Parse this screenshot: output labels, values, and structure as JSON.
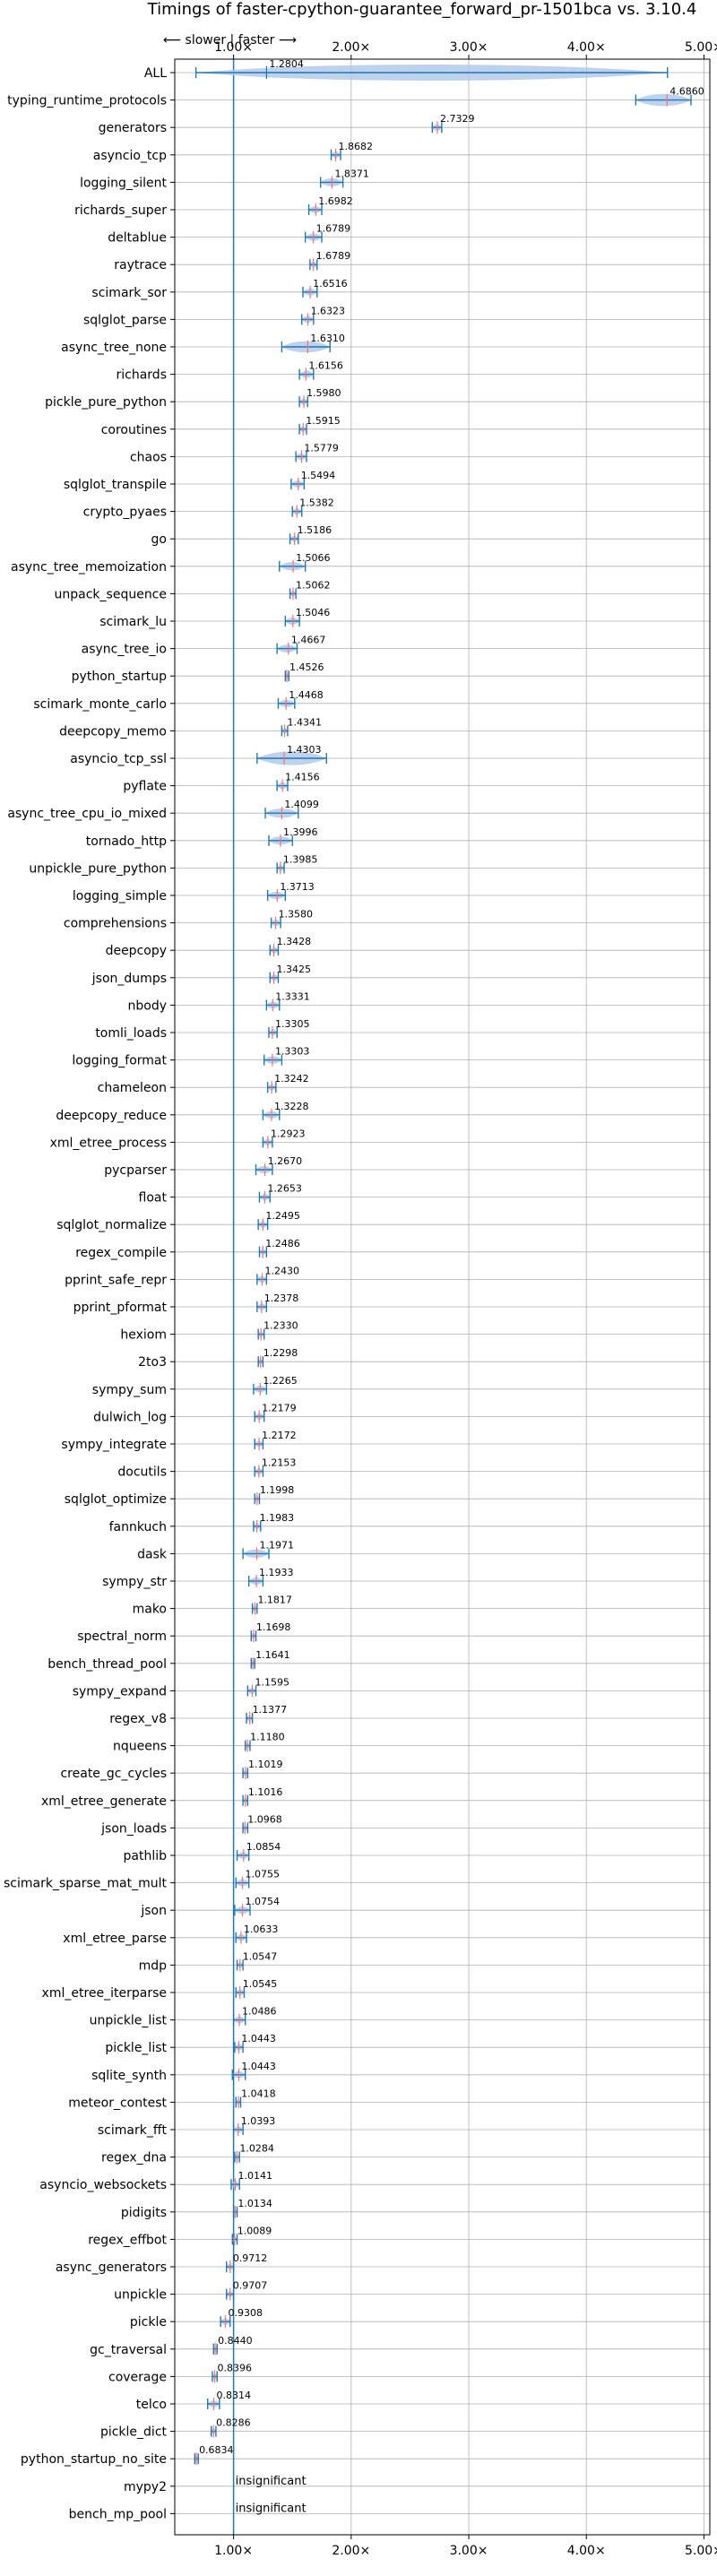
{
  "chart_data": {
    "type": "violin",
    "title": "Timings of faster-cpython-guarantee_forward_pr-1501bca vs. 3.10.4",
    "direction_label": "⟵ slower | faster ⟶",
    "xlim": [
      0.5,
      5.05
    ],
    "xticks": [
      1,
      2,
      3,
      4,
      5
    ],
    "xtick_labels": [
      "1.00×",
      "2.00×",
      "3.00×",
      "4.00×",
      "5.00×"
    ],
    "grid": true,
    "colors": {
      "primary": "#1f77b4",
      "violin_fill": "#aec7e8",
      "median": "#ff6f6f"
    },
    "items": [
      {
        "name": "ALL",
        "value": 1.2804,
        "label": "1.2804",
        "lo": 0.68,
        "hi": 4.69
      },
      {
        "name": "typing_runtime_protocols",
        "value": 4.686,
        "label": "4.6860",
        "lo": 4.42,
        "hi": 4.89
      },
      {
        "name": "generators",
        "value": 2.7329,
        "label": "2.7329",
        "lo": 2.69,
        "hi": 2.77
      },
      {
        "name": "asyncio_tcp",
        "value": 1.8682,
        "label": "1.8682",
        "lo": 1.83,
        "hi": 1.91
      },
      {
        "name": "logging_silent",
        "value": 1.8371,
        "label": "1.8371",
        "lo": 1.74,
        "hi": 1.93
      },
      {
        "name": "richards_super",
        "value": 1.6982,
        "label": "1.6982",
        "lo": 1.64,
        "hi": 1.75
      },
      {
        "name": "deltablue",
        "value": 1.6789,
        "label": "1.6789",
        "lo": 1.61,
        "hi": 1.75
      },
      {
        "name": "raytrace",
        "value": 1.6789,
        "label": "1.6789",
        "lo": 1.65,
        "hi": 1.71
      },
      {
        "name": "scimark_sor",
        "value": 1.6516,
        "label": "1.6516",
        "lo": 1.59,
        "hi": 1.71
      },
      {
        "name": "sqlglot_parse",
        "value": 1.6323,
        "label": "1.6323",
        "lo": 1.58,
        "hi": 1.68
      },
      {
        "name": "async_tree_none",
        "value": 1.631,
        "label": "1.6310",
        "lo": 1.41,
        "hi": 1.82
      },
      {
        "name": "richards",
        "value": 1.6156,
        "label": "1.6156",
        "lo": 1.56,
        "hi": 1.68
      },
      {
        "name": "pickle_pure_python",
        "value": 1.598,
        "label": "1.5980",
        "lo": 1.56,
        "hi": 1.63
      },
      {
        "name": "coroutines",
        "value": 1.5915,
        "label": "1.5915",
        "lo": 1.56,
        "hi": 1.62
      },
      {
        "name": "chaos",
        "value": 1.5779,
        "label": "1.5779",
        "lo": 1.53,
        "hi": 1.62
      },
      {
        "name": "sqlglot_transpile",
        "value": 1.5494,
        "label": "1.5494",
        "lo": 1.49,
        "hi": 1.6
      },
      {
        "name": "crypto_pyaes",
        "value": 1.5382,
        "label": "1.5382",
        "lo": 1.5,
        "hi": 1.58
      },
      {
        "name": "go",
        "value": 1.5186,
        "label": "1.5186",
        "lo": 1.48,
        "hi": 1.55
      },
      {
        "name": "async_tree_memoization",
        "value": 1.5066,
        "label": "1.5066",
        "lo": 1.39,
        "hi": 1.61
      },
      {
        "name": "unpack_sequence",
        "value": 1.5062,
        "label": "1.5062",
        "lo": 1.48,
        "hi": 1.53
      },
      {
        "name": "scimark_lu",
        "value": 1.5046,
        "label": "1.5046",
        "lo": 1.44,
        "hi": 1.56
      },
      {
        "name": "async_tree_io",
        "value": 1.4667,
        "label": "1.4667",
        "lo": 1.37,
        "hi": 1.54
      },
      {
        "name": "python_startup",
        "value": 1.4526,
        "label": "1.4526",
        "lo": 1.44,
        "hi": 1.47
      },
      {
        "name": "scimark_monte_carlo",
        "value": 1.4468,
        "label": "1.4468",
        "lo": 1.38,
        "hi": 1.52
      },
      {
        "name": "deepcopy_memo",
        "value": 1.4341,
        "label": "1.4341",
        "lo": 1.41,
        "hi": 1.46
      },
      {
        "name": "asyncio_tcp_ssl",
        "value": 1.4303,
        "label": "1.4303",
        "lo": 1.2,
        "hi": 1.79
      },
      {
        "name": "pyflate",
        "value": 1.4156,
        "label": "1.4156",
        "lo": 1.37,
        "hi": 1.46
      },
      {
        "name": "async_tree_cpu_io_mixed",
        "value": 1.4099,
        "label": "1.4099",
        "lo": 1.27,
        "hi": 1.55
      },
      {
        "name": "tornado_http",
        "value": 1.3996,
        "label": "1.3996",
        "lo": 1.3,
        "hi": 1.5
      },
      {
        "name": "unpickle_pure_python",
        "value": 1.3985,
        "label": "1.3985",
        "lo": 1.37,
        "hi": 1.43
      },
      {
        "name": "logging_simple",
        "value": 1.3713,
        "label": "1.3713",
        "lo": 1.29,
        "hi": 1.44
      },
      {
        "name": "comprehensions",
        "value": 1.358,
        "label": "1.3580",
        "lo": 1.32,
        "hi": 1.4
      },
      {
        "name": "deepcopy",
        "value": 1.3428,
        "label": "1.3428",
        "lo": 1.31,
        "hi": 1.38
      },
      {
        "name": "json_dumps",
        "value": 1.3425,
        "label": "1.3425",
        "lo": 1.31,
        "hi": 1.38
      },
      {
        "name": "nbody",
        "value": 1.3331,
        "label": "1.3331",
        "lo": 1.28,
        "hi": 1.39
      },
      {
        "name": "tomli_loads",
        "value": 1.3305,
        "label": "1.3305",
        "lo": 1.3,
        "hi": 1.37
      },
      {
        "name": "logging_format",
        "value": 1.3303,
        "label": "1.3303",
        "lo": 1.26,
        "hi": 1.41
      },
      {
        "name": "chameleon",
        "value": 1.3242,
        "label": "1.3242",
        "lo": 1.29,
        "hi": 1.36
      },
      {
        "name": "deepcopy_reduce",
        "value": 1.3228,
        "label": "1.3228",
        "lo": 1.25,
        "hi": 1.39
      },
      {
        "name": "xml_etree_process",
        "value": 1.2923,
        "label": "1.2923",
        "lo": 1.25,
        "hi": 1.33
      },
      {
        "name": "pycparser",
        "value": 1.267,
        "label": "1.2670",
        "lo": 1.19,
        "hi": 1.33
      },
      {
        "name": "float",
        "value": 1.2653,
        "label": "1.2653",
        "lo": 1.22,
        "hi": 1.31
      },
      {
        "name": "sqlglot_normalize",
        "value": 1.2495,
        "label": "1.2495",
        "lo": 1.21,
        "hi": 1.29
      },
      {
        "name": "regex_compile",
        "value": 1.2486,
        "label": "1.2486",
        "lo": 1.22,
        "hi": 1.28
      },
      {
        "name": "pprint_safe_repr",
        "value": 1.243,
        "label": "1.2430",
        "lo": 1.2,
        "hi": 1.28
      },
      {
        "name": "pprint_pformat",
        "value": 1.2378,
        "label": "1.2378",
        "lo": 1.2,
        "hi": 1.28
      },
      {
        "name": "hexiom",
        "value": 1.233,
        "label": "1.2330",
        "lo": 1.21,
        "hi": 1.26
      },
      {
        "name": "2to3",
        "value": 1.2298,
        "label": "1.2298",
        "lo": 1.21,
        "hi": 1.25
      },
      {
        "name": "sympy_sum",
        "value": 1.2265,
        "label": "1.2265",
        "lo": 1.17,
        "hi": 1.28
      },
      {
        "name": "dulwich_log",
        "value": 1.2179,
        "label": "1.2179",
        "lo": 1.18,
        "hi": 1.26
      },
      {
        "name": "sympy_integrate",
        "value": 1.2172,
        "label": "1.2172",
        "lo": 1.18,
        "hi": 1.25
      },
      {
        "name": "docutils",
        "value": 1.2153,
        "label": "1.2153",
        "lo": 1.18,
        "hi": 1.25
      },
      {
        "name": "sqlglot_optimize",
        "value": 1.1998,
        "label": "1.1998",
        "lo": 1.18,
        "hi": 1.22
      },
      {
        "name": "fannkuch",
        "value": 1.1983,
        "label": "1.1983",
        "lo": 1.17,
        "hi": 1.23
      },
      {
        "name": "dask",
        "value": 1.1971,
        "label": "1.1971",
        "lo": 1.08,
        "hi": 1.3
      },
      {
        "name": "sympy_str",
        "value": 1.1933,
        "label": "1.1933",
        "lo": 1.13,
        "hi": 1.25
      },
      {
        "name": "mako",
        "value": 1.1817,
        "label": "1.1817",
        "lo": 1.16,
        "hi": 1.2
      },
      {
        "name": "spectral_norm",
        "value": 1.1698,
        "label": "1.1698",
        "lo": 1.15,
        "hi": 1.19
      },
      {
        "name": "bench_thread_pool",
        "value": 1.1641,
        "label": "1.1641",
        "lo": 1.15,
        "hi": 1.18
      },
      {
        "name": "sympy_expand",
        "value": 1.1595,
        "label": "1.1595",
        "lo": 1.12,
        "hi": 1.19
      },
      {
        "name": "regex_v8",
        "value": 1.1377,
        "label": "1.1377",
        "lo": 1.11,
        "hi": 1.16
      },
      {
        "name": "nqueens",
        "value": 1.118,
        "label": "1.1180",
        "lo": 1.1,
        "hi": 1.14
      },
      {
        "name": "create_gc_cycles",
        "value": 1.1019,
        "label": "1.1019",
        "lo": 1.08,
        "hi": 1.12
      },
      {
        "name": "xml_etree_generate",
        "value": 1.1016,
        "label": "1.1016",
        "lo": 1.08,
        "hi": 1.12
      },
      {
        "name": "json_loads",
        "value": 1.0968,
        "label": "1.0968",
        "lo": 1.08,
        "hi": 1.12
      },
      {
        "name": "pathlib",
        "value": 1.0854,
        "label": "1.0854",
        "lo": 1.03,
        "hi": 1.13
      },
      {
        "name": "scimark_sparse_mat_mult",
        "value": 1.0755,
        "label": "1.0755",
        "lo": 1.02,
        "hi": 1.13
      },
      {
        "name": "json",
        "value": 1.0754,
        "label": "1.0754",
        "lo": 1.01,
        "hi": 1.14
      },
      {
        "name": "xml_etree_parse",
        "value": 1.0633,
        "label": "1.0633",
        "lo": 1.02,
        "hi": 1.11
      },
      {
        "name": "mdp",
        "value": 1.0547,
        "label": "1.0547",
        "lo": 1.03,
        "hi": 1.08
      },
      {
        "name": "xml_etree_iterparse",
        "value": 1.0545,
        "label": "1.0545",
        "lo": 1.02,
        "hi": 1.09
      },
      {
        "name": "unpickle_list",
        "value": 1.0486,
        "label": "1.0486",
        "lo": 1.0,
        "hi": 1.1
      },
      {
        "name": "pickle_list",
        "value": 1.0443,
        "label": "1.0443",
        "lo": 1.01,
        "hi": 1.08
      },
      {
        "name": "sqlite_synth",
        "value": 1.0443,
        "label": "1.0443",
        "lo": 0.99,
        "hi": 1.1
      },
      {
        "name": "meteor_contest",
        "value": 1.0418,
        "label": "1.0418",
        "lo": 1.02,
        "hi": 1.06
      },
      {
        "name": "scimark_fft",
        "value": 1.0393,
        "label": "1.0393",
        "lo": 1.0,
        "hi": 1.08
      },
      {
        "name": "regex_dna",
        "value": 1.0284,
        "label": "1.0284",
        "lo": 1.01,
        "hi": 1.05
      },
      {
        "name": "asyncio_websockets",
        "value": 1.0141,
        "label": "1.0141",
        "lo": 0.98,
        "hi": 1.05
      },
      {
        "name": "pidigits",
        "value": 1.0134,
        "label": "1.0134",
        "lo": 1.0,
        "hi": 1.03
      },
      {
        "name": "regex_effbot",
        "value": 1.0089,
        "label": "1.0089",
        "lo": 0.99,
        "hi": 1.03
      },
      {
        "name": "async_generators",
        "value": 0.9712,
        "label": "0.9712",
        "lo": 0.94,
        "hi": 1.0
      },
      {
        "name": "unpickle",
        "value": 0.9707,
        "label": "0.9707",
        "lo": 0.94,
        "hi": 1.0
      },
      {
        "name": "pickle",
        "value": 0.9308,
        "label": "0.9308",
        "lo": 0.89,
        "hi": 0.97
      },
      {
        "name": "gc_traversal",
        "value": 0.844,
        "label": "0.8440",
        "lo": 0.83,
        "hi": 0.86
      },
      {
        "name": "coverage",
        "value": 0.8396,
        "label": "0.8396",
        "lo": 0.82,
        "hi": 0.86
      },
      {
        "name": "telco",
        "value": 0.8314,
        "label": "0.8314",
        "lo": 0.78,
        "hi": 0.88
      },
      {
        "name": "pickle_dict",
        "value": 0.8286,
        "label": "0.8286",
        "lo": 0.81,
        "hi": 0.85
      },
      {
        "name": "python_startup_no_site",
        "value": 0.6834,
        "label": "0.6834",
        "lo": 0.67,
        "hi": 0.7
      },
      {
        "name": "mypy2",
        "value": 1.0,
        "label": "insignificant",
        "insignificant": true
      },
      {
        "name": "bench_mp_pool",
        "value": 1.0,
        "label": "insignificant",
        "insignificant": true
      }
    ]
  }
}
